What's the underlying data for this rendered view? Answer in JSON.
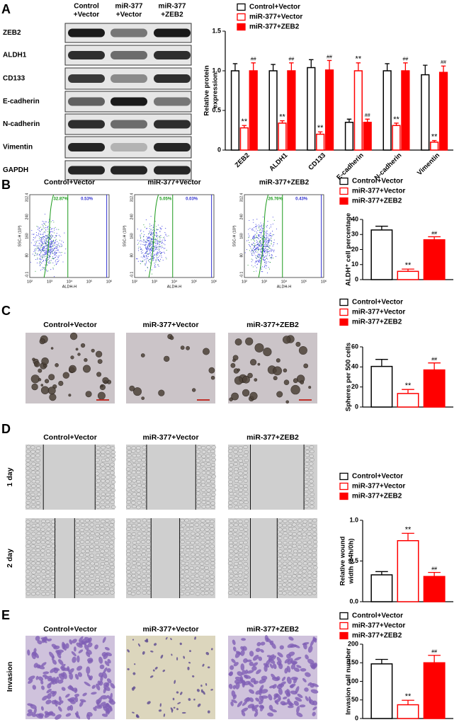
{
  "figure": {
    "panel_labels": [
      "A",
      "B",
      "C",
      "D",
      "E"
    ],
    "blot": {
      "columns": [
        [
          "Control",
          "+Vector"
        ],
        [
          "miR-377",
          "+Vector"
        ],
        [
          "miR-377",
          "+ZEB2"
        ]
      ],
      "rows": [
        "ZEB2",
        "ALDH1",
        "CD133",
        "E-cadherin",
        "N-cadherin",
        "Vimentin",
        "GAPDH"
      ]
    },
    "flow": {
      "titles": [
        "Control+Vector",
        "miR-377+Vector",
        "miR-377+ZEB2"
      ],
      "gates": [
        [
          "32.87%",
          "0.53%"
        ],
        [
          "5.05%",
          "0.03%"
        ],
        [
          "26.76%",
          "0.43%"
        ]
      ],
      "ylabel": "SSC-H (10³)",
      "xlabel": "ALDH-H",
      "yticks": [
        "312.4",
        "240",
        "160",
        "80",
        "-0.1"
      ],
      "xticks": [
        "10²",
        "10³",
        "10⁴",
        "10⁵",
        "10⁶"
      ]
    },
    "spheres": {
      "titles": [
        "Control+Vector",
        "miR-377+Vector",
        "miR-377+ZEB2"
      ]
    },
    "wound": {
      "titles": [
        "Control+Vector",
        "miR-377+Vector",
        "miR-377+ZEB2"
      ],
      "rows": [
        "1 day",
        "2 day"
      ]
    },
    "invasion": {
      "titles": [
        "Control+Vector",
        "miR-377+Vector",
        "miR-377+ZEB2"
      ],
      "row": "Invasion"
    }
  },
  "chart_data": [
    {
      "type": "bar",
      "ylabel": [
        "Relative protein",
        "expression"
      ],
      "categories": [
        "ZEB2",
        "ALDH1",
        "CD133",
        "E-cadherin",
        "N-cadherin",
        "Vimentin"
      ],
      "ylim": [
        0,
        1.5
      ],
      "yticks": [
        0,
        0.5,
        {
          "value": 1,
          "label": "1.0"
        },
        1.5
      ],
      "series": [
        {
          "name": "Control+Vector",
          "color": "#ffffff",
          "edgecolor": "#000000",
          "values": [
            1.0,
            1.0,
            1.04,
            0.35,
            1.0,
            0.95
          ],
          "errors": [
            0.09,
            0.08,
            0.1,
            0.04,
            0.09,
            0.12
          ],
          "markers": [
            null,
            null,
            null,
            null,
            null,
            null
          ]
        },
        {
          "name": "miR-377+Vector",
          "color": "#ffffff",
          "edgecolor": "#ff0000",
          "values": [
            0.28,
            0.34,
            0.2,
            1.0,
            0.31,
            0.1
          ],
          "errors": [
            0.03,
            0.03,
            0.03,
            0.1,
            0.03,
            0.02
          ],
          "markers": [
            "**",
            "**",
            "**",
            "**",
            "**",
            "**"
          ]
        },
        {
          "name": "miR-377+ZEB2",
          "color": "#ff0000",
          "edgecolor": "#ff0000",
          "values": [
            1.0,
            1.0,
            1.01,
            0.35,
            1.0,
            0.98
          ],
          "errors": [
            0.1,
            0.1,
            0.12,
            0.04,
            0.1,
            0.08
          ],
          "markers": [
            "##",
            "##",
            "##",
            "##",
            "##",
            "##"
          ]
        }
      ]
    },
    {
      "type": "bar",
      "ylabel": [
        "ALDH⁺ cell percentage"
      ],
      "categories": [
        null
      ],
      "ylim": [
        0,
        40
      ],
      "yticks": [
        0,
        10,
        20,
        30,
        40
      ],
      "series": [
        {
          "name": "Control+Vector",
          "color": "#ffffff",
          "edgecolor": "#000000",
          "values": [
            33
          ],
          "errors": [
            2.5
          ],
          "markers": [
            null
          ]
        },
        {
          "name": "miR-377+Vector",
          "color": "#ffffff",
          "edgecolor": "#ff0000",
          "values": [
            5.5
          ],
          "errors": [
            1.5
          ],
          "markers": [
            "**"
          ]
        },
        {
          "name": "miR-377+ZEB2",
          "color": "#ff0000",
          "edgecolor": "#ff0000",
          "values": [
            26.5
          ],
          "errors": [
            2
          ],
          "markers": [
            "##"
          ]
        }
      ]
    },
    {
      "type": "bar",
      "ylabel": [
        "Spheres per 500 cells"
      ],
      "categories": [
        null
      ],
      "ylim": [
        0,
        60
      ],
      "yticks": [
        0,
        20,
        40,
        60
      ],
      "series": [
        {
          "name": "Control+Vector",
          "color": "#ffffff",
          "edgecolor": "#000000",
          "values": [
            40.5
          ],
          "errors": [
            7
          ],
          "markers": [
            null
          ]
        },
        {
          "name": "miR-377+Vector",
          "color": "#ffffff",
          "edgecolor": "#ff0000",
          "values": [
            13.5
          ],
          "errors": [
            4
          ],
          "markers": [
            "**"
          ]
        },
        {
          "name": "miR-377+ZEB2",
          "color": "#ff0000",
          "edgecolor": "#ff0000",
          "values": [
            37
          ],
          "errors": [
            7
          ],
          "markers": [
            "##"
          ]
        }
      ]
    },
    {
      "type": "bar",
      "ylabel": [
        "Relative wound",
        "width (24h/0h)"
      ],
      "categories": [
        null
      ],
      "ylim": [
        0,
        1
      ],
      "yticks": [
        {
          "value": 0,
          "label": "0.0"
        },
        0.5,
        {
          "value": 1,
          "label": "1.0"
        }
      ],
      "series": [
        {
          "name": "Control+Vector",
          "color": "#ffffff",
          "edgecolor": "#000000",
          "values": [
            0.33
          ],
          "errors": [
            0.04
          ],
          "markers": [
            null
          ]
        },
        {
          "name": "miR-377+Vector",
          "color": "#ffffff",
          "edgecolor": "#ff0000",
          "values": [
            0.75
          ],
          "errors": [
            0.09
          ],
          "markers": [
            "**"
          ]
        },
        {
          "name": "miR-377+ZEB2",
          "color": "#ff0000",
          "edgecolor": "#ff0000",
          "values": [
            0.31
          ],
          "errors": [
            0.05
          ],
          "markers": [
            "##"
          ]
        }
      ]
    },
    {
      "type": "bar",
      "ylabel": [
        "Invasion cell number"
      ],
      "categories": [
        null
      ],
      "ylim": [
        0,
        200
      ],
      "yticks": [
        0,
        50,
        100,
        150,
        200
      ],
      "series": [
        {
          "name": "Control+Vector",
          "color": "#ffffff",
          "edgecolor": "#000000",
          "values": [
            147
          ],
          "errors": [
            12
          ],
          "markers": [
            null
          ]
        },
        {
          "name": "miR-377+Vector",
          "color": "#ffffff",
          "edgecolor": "#ff0000",
          "values": [
            37
          ],
          "errors": [
            12
          ],
          "markers": [
            "**"
          ]
        },
        {
          "name": "miR-377+ZEB2",
          "color": "#ff0000",
          "edgecolor": "#ff0000",
          "values": [
            150
          ],
          "errors": [
            20
          ],
          "markers": [
            "##"
          ]
        }
      ]
    }
  ]
}
